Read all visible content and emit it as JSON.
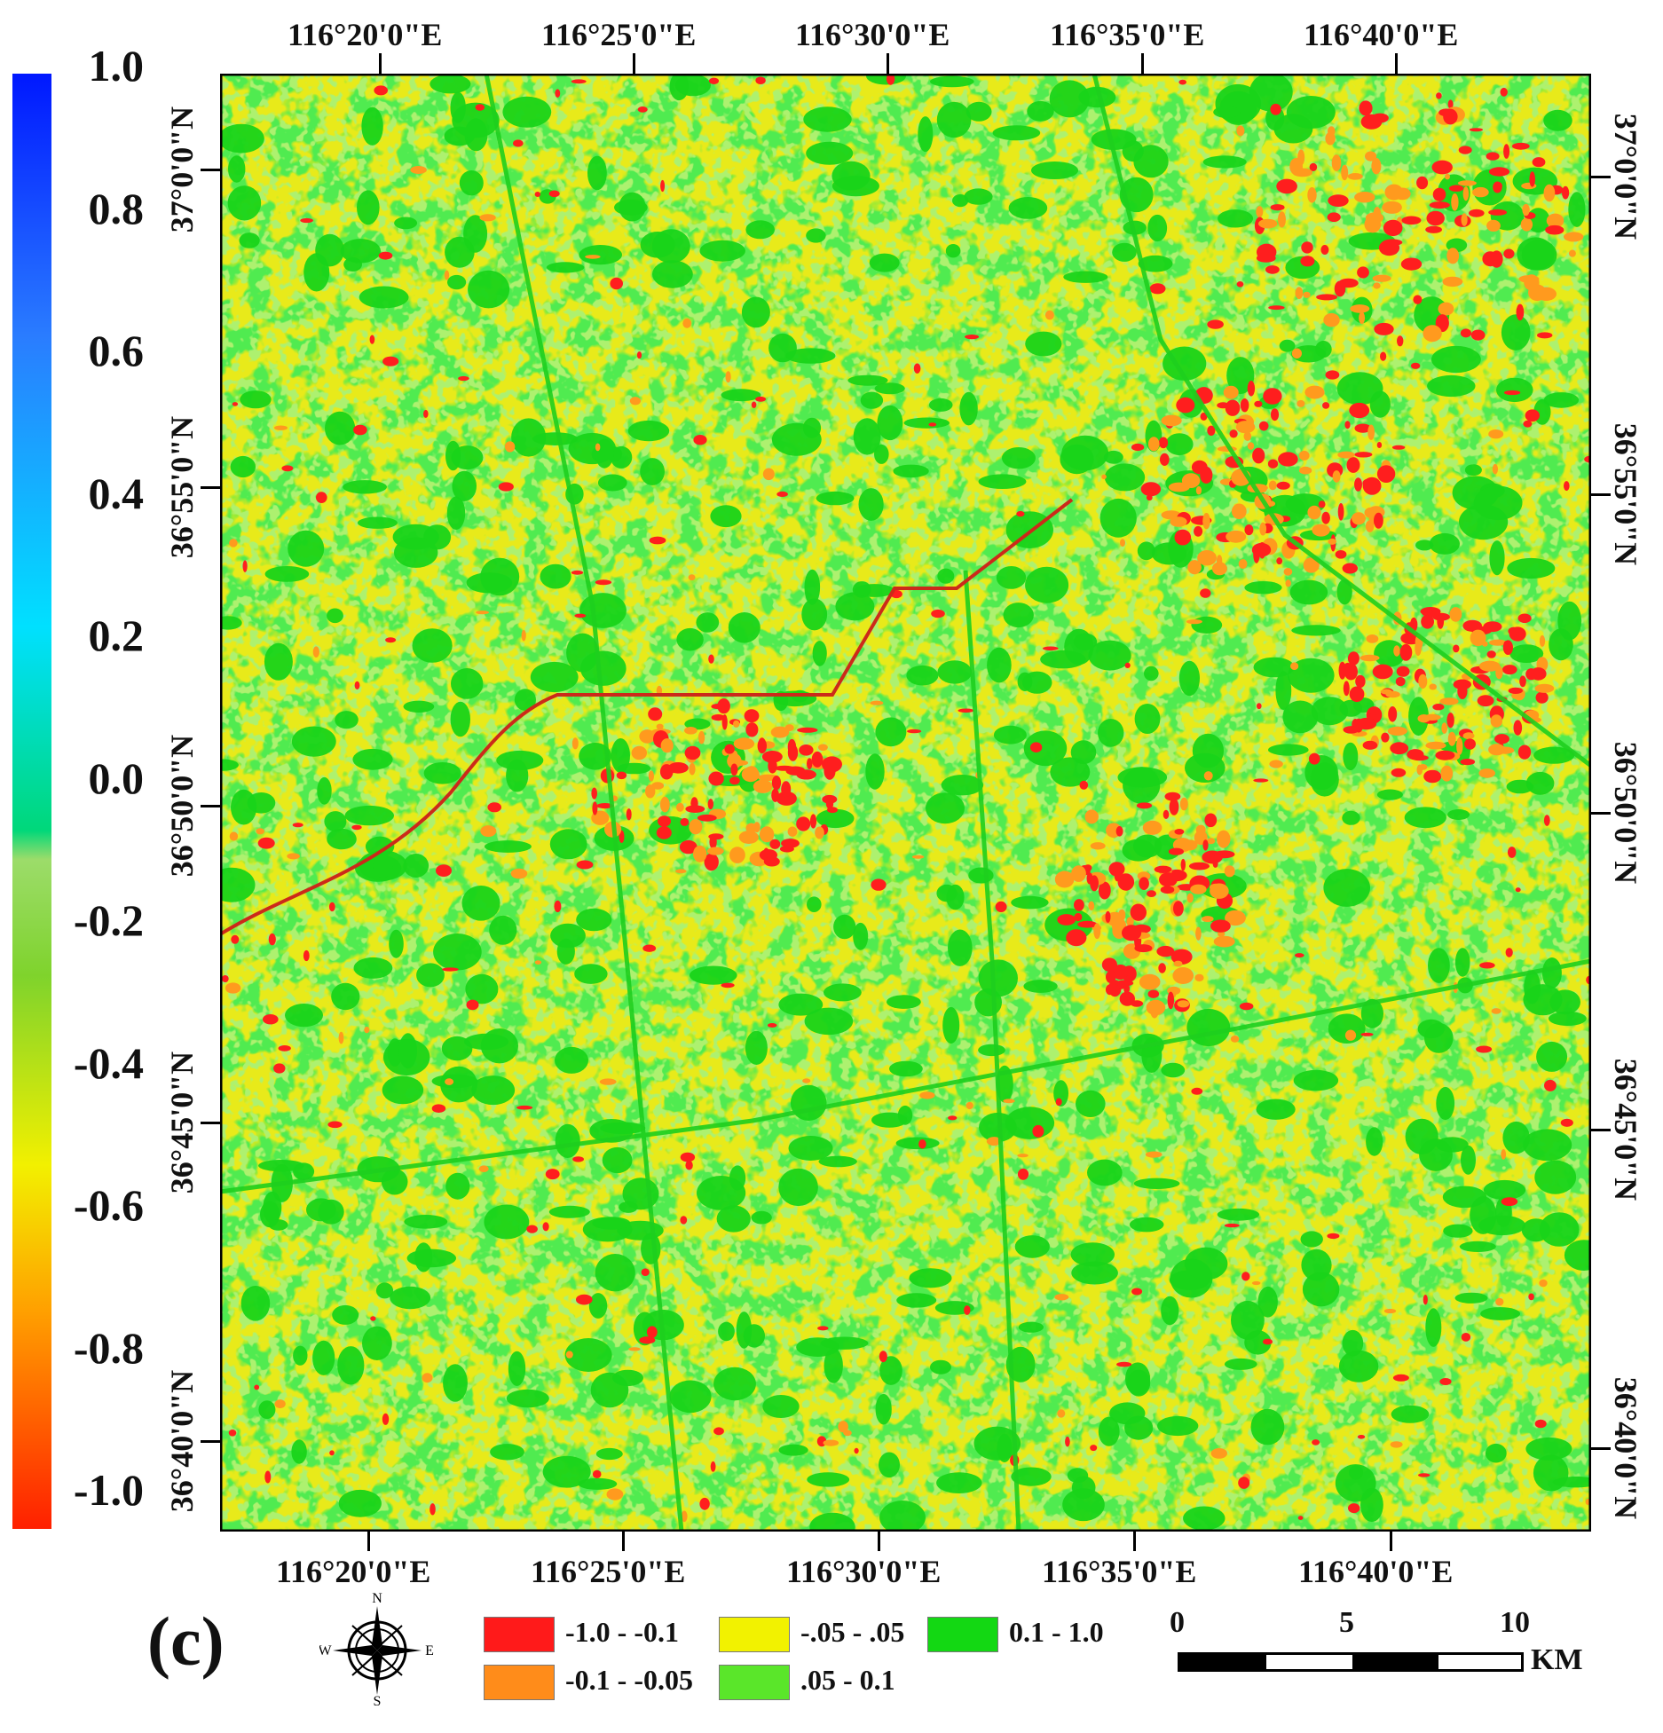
{
  "colorbar": {
    "labels": [
      "1.0",
      "0.8",
      "0.6",
      "0.4",
      "0.2",
      "0.0",
      "-0.2",
      "-0.4",
      "-0.6",
      "-0.8",
      "-1.0"
    ],
    "colors": [
      "#0010ff",
      "#1f7dff",
      "#00e5ff",
      "#00d08a",
      "#7ad84a",
      "#f0f000",
      "#ff9a00",
      "#ff0000"
    ]
  },
  "top_axis": [
    "116°20'0\"E",
    "116°25'0\"E",
    "116°30'0\"E",
    "116°35'0\"E",
    "116°40'0\"E"
  ],
  "bottom_axis": [
    "116°20'0\"E",
    "116°25'0\"E",
    "116°30'0\"E",
    "116°35'0\"E",
    "116°40'0\"E"
  ],
  "left_axis": [
    "37°0'0\"N",
    "36°55'0\"N",
    "36°50'0\"N",
    "36°45'0\"N",
    "36°40'0\"N"
  ],
  "right_axis": [
    "37°0'0\"N",
    "36°55'0\"N",
    "36°50'0\"N",
    "36°45'0\"N",
    "36°40'0\"N"
  ],
  "panel_label": "(c)",
  "compass": {
    "n": "N",
    "s": "S",
    "e": "E",
    "w": "W"
  },
  "legend": [
    {
      "label": "-1.0 - -0.1",
      "color": "#ff1a1a"
    },
    {
      "label": "-.05 - .05",
      "color": "#f2f200"
    },
    {
      "label": "0.1 - 1.0",
      "color": "#13d813"
    },
    {
      "label": "-0.1 - -0.05",
      "color": "#ff8c1a"
    },
    {
      "label": ".05 - 0.1",
      "color": "#5ae62a"
    }
  ],
  "scalebar": {
    "ticks": [
      "0",
      "5",
      "10"
    ],
    "unit": "KM"
  },
  "map_colors": {
    "base": "#e8ea1a",
    "green": "#19d419",
    "lightgreen": "#6ddf2a",
    "red": "#ff1e1e",
    "orange": "#ff9a1e"
  }
}
